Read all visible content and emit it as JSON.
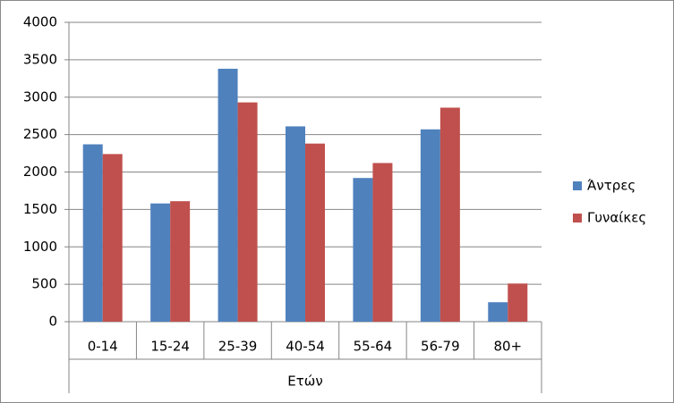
{
  "chart_data": {
    "type": "bar",
    "categories": [
      "0-14",
      "15-24",
      "25-39",
      "40-54",
      "55-64",
      "56-79",
      "80+"
    ],
    "series": [
      {
        "name": "Άντρες",
        "color": "#4f81bd",
        "values": [
          2370,
          1580,
          3380,
          2610,
          1920,
          2570,
          260
        ]
      },
      {
        "name": "Γυναίκες",
        "color": "#c0504d",
        "values": [
          2240,
          1610,
          2930,
          2380,
          2120,
          2860,
          510
        ]
      }
    ],
    "x_label": "Ετών",
    "ylim": [
      0,
      4000
    ],
    "yticks": [
      0,
      500,
      1000,
      1500,
      2000,
      2500,
      3000,
      3500,
      4000
    ],
    "grid": true,
    "legend": "right"
  }
}
